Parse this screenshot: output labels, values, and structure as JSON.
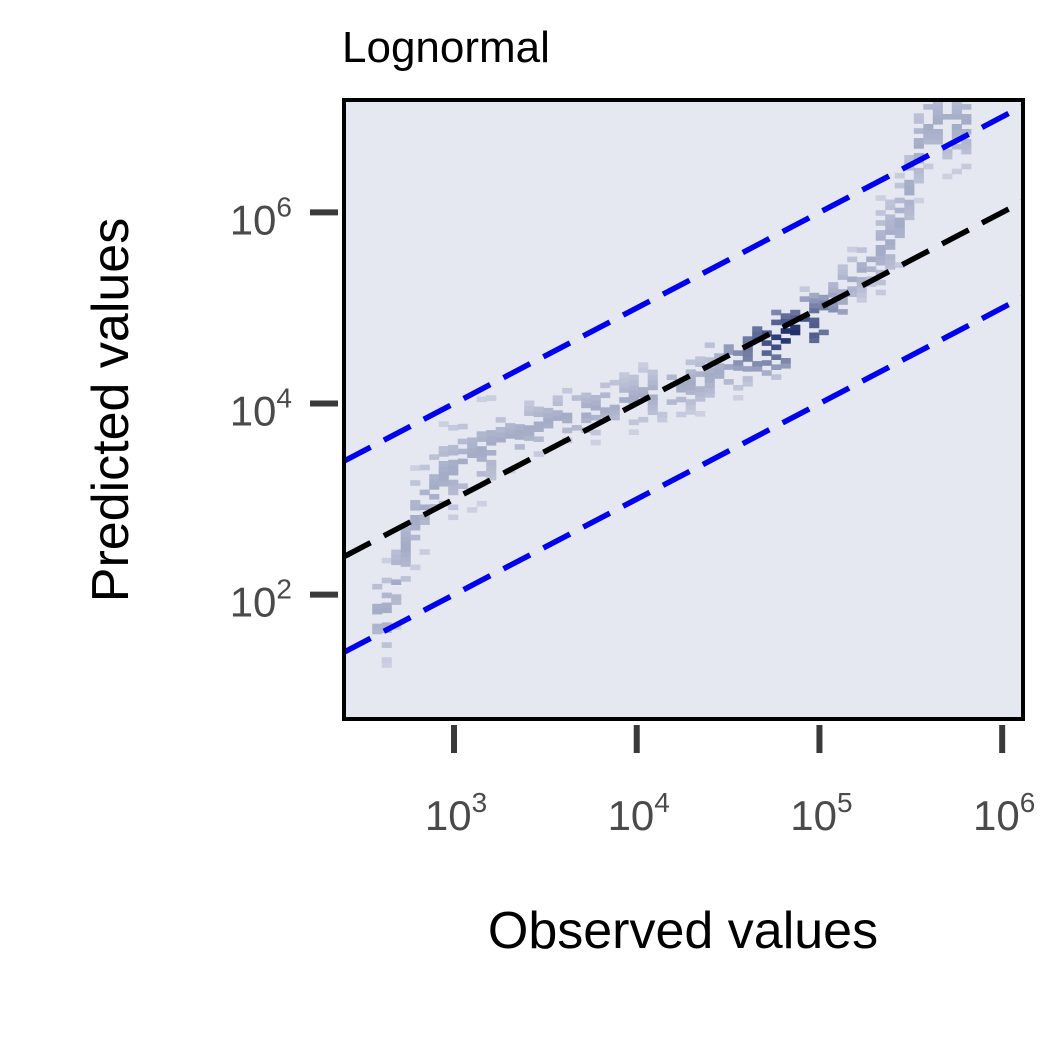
{
  "chart_data": {
    "type": "heatmap",
    "title": "Lognormal",
    "xlabel": "Observed values",
    "ylabel": "Predicted values",
    "xscale": "log",
    "yscale": "log",
    "xlim": [
      250,
      1300000
    ],
    "ylim": [
      5,
      15000000
    ],
    "grid": false,
    "legend": "none",
    "x_ticks": [
      {
        "value": 1000,
        "base": "10",
        "exp": "3"
      },
      {
        "value": 10000,
        "base": "10",
        "exp": "4"
      },
      {
        "value": 100000,
        "base": "10",
        "exp": "5"
      },
      {
        "value": 1000000,
        "base": "10",
        "exp": "6"
      }
    ],
    "y_ticks": [
      {
        "value": 100,
        "base": "10",
        "exp": "2"
      },
      {
        "value": 10000,
        "base": "10",
        "exp": "4"
      },
      {
        "value": 1000000,
        "base": "10",
        "exp": "6"
      }
    ],
    "reference_lines": [
      {
        "name": "",
        "multiplier": 1,
        "style": "dashed",
        "color": "#000000"
      },
      {
        "name": "",
        "multiplier": 10,
        "style": "dashed",
        "color": "#0000ee"
      },
      {
        "name": "",
        "multiplier": 0.1,
        "style": "dashed",
        "color": "#0000ee"
      }
    ],
    "density_ridge": [
      {
        "x": 400,
        "y": 60
      },
      {
        "x": 550,
        "y": 500
      },
      {
        "x": 800,
        "y": 1600
      },
      {
        "x": 1500,
        "y": 3500
      },
      {
        "x": 3000,
        "y": 6000
      },
      {
        "x": 8000,
        "y": 10000
      },
      {
        "x": 20000,
        "y": 16000
      },
      {
        "x": 40000,
        "y": 28000
      },
      {
        "x": 60000,
        "y": 45000
      },
      {
        "x": 90000,
        "y": 90000
      },
      {
        "x": 150000,
        "y": 200000
      },
      {
        "x": 250000,
        "y": 600000
      },
      {
        "x": 300000,
        "y": 2000000
      },
      {
        "x": 350000,
        "y": 8000000
      }
    ],
    "density_peak": {
      "x": 65000,
      "y": 50000
    },
    "colors": {
      "plot_background": "#e5e8f1",
      "density_low": "#d3d7e6",
      "density_high": "#1a2a68",
      "axes": "#000000",
      "ticks": "#3a3a3a"
    }
  }
}
